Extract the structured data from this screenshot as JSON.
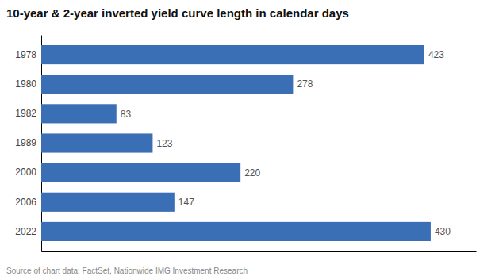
{
  "chart_data": {
    "type": "bar",
    "orientation": "horizontal",
    "title": "10-year & 2-year inverted yield curve length in calendar days",
    "categories": [
      "1978",
      "1980",
      "1982",
      "1989",
      "2000",
      "2006",
      "2022"
    ],
    "values": [
      423,
      278,
      83,
      123,
      220,
      147,
      430
    ],
    "color": "#3a6eb5",
    "xlim": [
      0,
      480
    ],
    "data_labels": true,
    "tick_labels": "y",
    "grid": false,
    "annotations": [
      "Source of chart data: FactSet, Nationwide IMG Investment Research"
    ]
  }
}
